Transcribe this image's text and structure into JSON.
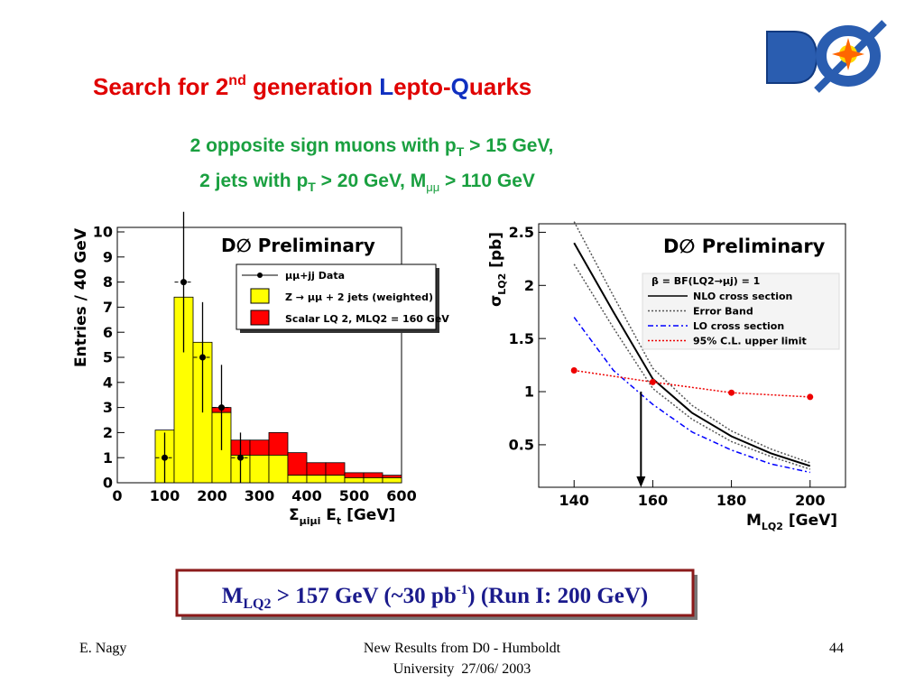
{
  "logo": "DØ",
  "title": {
    "p1": "Search for ",
    "num": "2",
    "sup": "nd",
    "p2": " generation ",
    "l": "L",
    "p3": "epto-",
    "q": "Q",
    "p4": "uarks"
  },
  "subtitle": {
    "line1": "2 opposite sign muons with p",
    "line1_sub": "T",
    "line1_end": " > 15 GeV,",
    "line2": "2 jets with p",
    "line2_sub": "T",
    "line2_mid": " > 20 GeV, M",
    "line2_sub2": "μμ",
    "line2_end": " > 110 GeV"
  },
  "result": {
    "m": "M",
    "m_sub": "LQ2",
    "text": " > 157 GeV (~30 pb",
    "sup": "-1",
    "end": ") (Run I: 200 GeV)"
  },
  "footer": {
    "left": "E. Nagy",
    "center1": "New Results from D0 - Humboldt",
    "center2": "University  27/06/ 2003",
    "right": "44"
  },
  "chart_data": [
    {
      "type": "histogram",
      "annotation": "D∅ Preliminary",
      "y_label": "Entries / 40 GeV",
      "x_label": "Σ",
      "x_label_sub": "μiμi",
      "x_label_2": " E",
      "x_label_2_sub": "t",
      "x_label_unit": " [GeV]",
      "xlim": [
        0,
        600
      ],
      "ylim": [
        0,
        10
      ],
      "xticks": [
        0,
        100,
        200,
        300,
        400,
        500,
        600
      ],
      "yticks": [
        0,
        1,
        2,
        3,
        4,
        5,
        6,
        7,
        8,
        9,
        10
      ],
      "bins": [
        0,
        40,
        80,
        120,
        160,
        200,
        240,
        280,
        320,
        360,
        400,
        440,
        480,
        520,
        560,
        600
      ],
      "series": [
        {
          "name": "Z → μμ + 2 jets (weighted)",
          "color": "#ffff00",
          "values": [
            0,
            0,
            2.1,
            7.4,
            5.6,
            2.8,
            1.1,
            1.1,
            1.1,
            0.3,
            0.3,
            0.3,
            0.2,
            0.2,
            0.2
          ]
        },
        {
          "name": "Scalar LQ 2, MLQ2 = 160 GeV",
          "color": "#ff0000",
          "values": [
            0,
            0,
            0,
            0,
            0,
            0.2,
            0.6,
            0.6,
            0.9,
            0.9,
            0.5,
            0.5,
            0.2,
            0.2,
            0.1
          ]
        },
        {
          "name": "μμ+jj Data",
          "color": "#000000",
          "x": [
            100,
            140,
            180,
            220,
            260
          ],
          "values": [
            1,
            8,
            5,
            3,
            1
          ],
          "errors": [
            1,
            2.8,
            2.2,
            1.7,
            1
          ]
        }
      ]
    },
    {
      "type": "line",
      "annotation": "D∅ Preliminary",
      "legend_title": "β = BF(LQ2→μj) = 1",
      "y_label": "σ",
      "y_label_sub": "LQ2",
      "y_label_unit": " [pb]",
      "x_label": "M",
      "x_label_sub": "LQ2",
      "x_label_unit": " [GeV]",
      "xlim": [
        131,
        209
      ],
      "ylim": [
        0.1,
        2.58
      ],
      "xticks": [
        140,
        160,
        180,
        200
      ],
      "yticks": [
        0.5,
        1,
        1.5,
        2,
        2.5
      ],
      "x": [
        140,
        150,
        160,
        170,
        180,
        190,
        200
      ],
      "series": [
        {
          "name": "NLO cross section",
          "color": "#000000",
          "style": "solid",
          "values": [
            2.4,
            1.75,
            1.12,
            0.8,
            0.58,
            0.42,
            0.3
          ]
        },
        {
          "name": "Error Band",
          "color": "#555555",
          "style": "dotted",
          "upper": [
            2.6,
            1.9,
            1.22,
            0.87,
            0.63,
            0.46,
            0.33
          ],
          "lower": [
            2.2,
            1.6,
            1.03,
            0.74,
            0.53,
            0.39,
            0.27
          ]
        },
        {
          "name": "LO cross section",
          "color": "#0000ff",
          "style": "dashdot",
          "values": [
            1.7,
            1.2,
            0.88,
            0.62,
            0.45,
            0.32,
            0.24
          ]
        },
        {
          "name": "95% C.L. upper limit",
          "color": "#ee0000",
          "style": "dotted",
          "markers": true,
          "x": [
            140,
            160,
            180,
            200
          ],
          "values": [
            1.2,
            1.09,
            0.99,
            0.95
          ]
        }
      ],
      "arrow": {
        "x": 157,
        "y": 1.0
      }
    }
  ]
}
